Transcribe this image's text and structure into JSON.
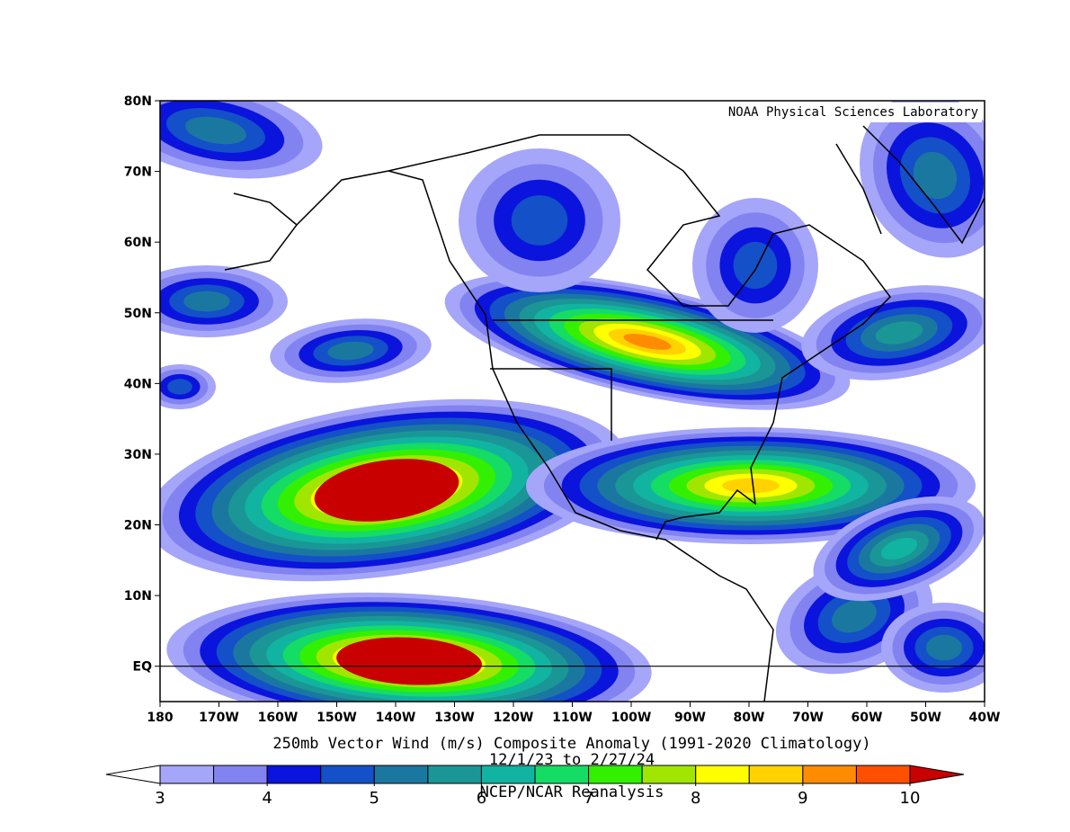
{
  "map": {
    "credit": "NOAA Physical Sciences Laboratory",
    "title": "250mb Vector Wind (m/s) Composite Anomaly (1991-2020 Climatology)",
    "subtitle": "12/1/23  to 2/27/24",
    "source": "NCEP/NCAR Reanalysis",
    "xlim": [
      -180,
      -40
    ],
    "ylim": [
      -5,
      80
    ],
    "xticks": [
      {
        "value": -180,
        "label": "180"
      },
      {
        "value": -170,
        "label": "170W"
      },
      {
        "value": -160,
        "label": "160W"
      },
      {
        "value": -150,
        "label": "150W"
      },
      {
        "value": -140,
        "label": "140W"
      },
      {
        "value": -130,
        "label": "130W"
      },
      {
        "value": -120,
        "label": "120W"
      },
      {
        "value": -110,
        "label": "110W"
      },
      {
        "value": -100,
        "label": "100W"
      },
      {
        "value": -90,
        "label": "90W"
      },
      {
        "value": -80,
        "label": "80W"
      },
      {
        "value": -70,
        "label": "70W"
      },
      {
        "value": -60,
        "label": "60W"
      },
      {
        "value": -50,
        "label": "50W"
      },
      {
        "value": -40,
        "label": "40W"
      }
    ],
    "yticks": [
      {
        "value": 0,
        "label": "EQ"
      },
      {
        "value": 10,
        "label": "10N"
      },
      {
        "value": 20,
        "label": "20N"
      },
      {
        "value": 30,
        "label": "30N"
      },
      {
        "value": 40,
        "label": "40N"
      },
      {
        "value": 50,
        "label": "50N"
      },
      {
        "value": 60,
        "label": "60N"
      },
      {
        "value": 70,
        "label": "70N"
      },
      {
        "value": 80,
        "label": "80N"
      }
    ],
    "colorbar": {
      "levels": [
        3,
        3.5,
        4,
        4.5,
        5,
        5.5,
        6,
        6.5,
        7,
        7.5,
        8,
        8.5,
        9,
        9.5,
        10
      ],
      "ticks": [
        3,
        4,
        5,
        6,
        7,
        8,
        9,
        10
      ],
      "colors": [
        "#a5a5fa",
        "#8282f0",
        "#0a14dc",
        "#1450c8",
        "#1a78a0",
        "#1a9696",
        "#10b4a0",
        "#14dc64",
        "#32f000",
        "#a0e600",
        "#ffff00",
        "#ffd200",
        "#ff8c00",
        "#ff5000"
      ],
      "under_color": "#ffffff",
      "over_color": "#c80000"
    }
  }
}
